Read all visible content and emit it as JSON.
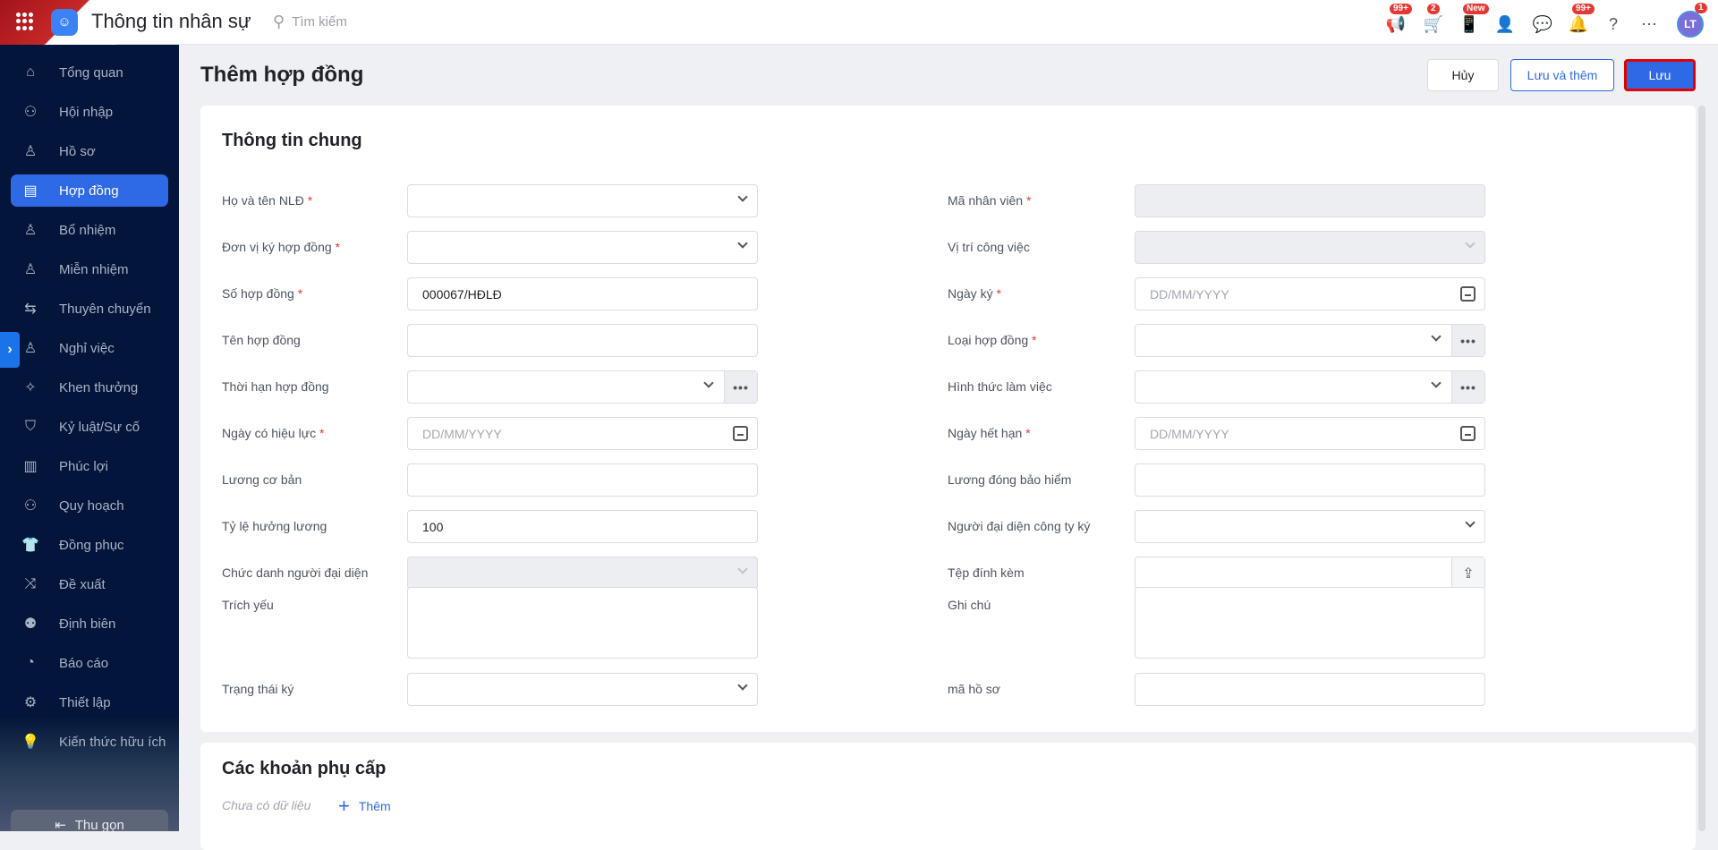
{
  "header": {
    "app_title": "Thông tin nhân sự",
    "search_placeholder": "Tìm kiếm",
    "icons": [
      {
        "name": "megaphone-icon",
        "glyph": "📢",
        "badge": "99+"
      },
      {
        "name": "cart-icon",
        "glyph": "🛒",
        "badge": "2"
      },
      {
        "name": "mobile-icon",
        "glyph": "📱",
        "badge": "New"
      },
      {
        "name": "user-add-icon",
        "glyph": "👤",
        "badge": ""
      },
      {
        "name": "chat-icon",
        "glyph": "💬",
        "badge": ""
      },
      {
        "name": "bell-icon",
        "glyph": "🔔",
        "badge": "99+"
      },
      {
        "name": "help-icon",
        "glyph": "?",
        "badge": ""
      },
      {
        "name": "more-icon",
        "glyph": "⋯",
        "badge": ""
      }
    ],
    "avatar": {
      "initials": "LT",
      "badge": "1"
    }
  },
  "sidebar": {
    "items": [
      {
        "label": "Tổng quan",
        "icon": "home-icon",
        "glyph": "⌂"
      },
      {
        "label": "Hội nhập",
        "icon": "group-icon",
        "glyph": "⚇"
      },
      {
        "label": "Hồ sơ",
        "icon": "user-icon",
        "glyph": "♙"
      },
      {
        "label": "Hợp đồng",
        "icon": "document-icon",
        "glyph": "▤",
        "active": true
      },
      {
        "label": "Bổ nhiệm",
        "icon": "user-plus-icon",
        "glyph": "♙"
      },
      {
        "label": "Miễn nhiệm",
        "icon": "user-minus-icon",
        "glyph": "♙"
      },
      {
        "label": "Thuyên chuyển",
        "icon": "transfer-icon",
        "glyph": "⇆"
      },
      {
        "label": "Nghỉ việc",
        "icon": "user-x-icon",
        "glyph": "♙"
      },
      {
        "label": "Khen thưởng",
        "icon": "reward-icon",
        "glyph": "✧"
      },
      {
        "label": "Kỷ luật/Sự cố",
        "icon": "shield-icon",
        "glyph": "⛉"
      },
      {
        "label": "Phúc lợi",
        "icon": "benefit-icon",
        "glyph": "▥"
      },
      {
        "label": "Quy hoạch",
        "icon": "planning-icon",
        "glyph": "⚇"
      },
      {
        "label": "Đồng phục",
        "icon": "shirt-icon",
        "glyph": "👕"
      },
      {
        "label": "Đề xuất",
        "icon": "proposal-icon",
        "glyph": "⤨"
      },
      {
        "label": "Định biên",
        "icon": "staffing-icon",
        "glyph": "⚉"
      },
      {
        "label": "Báo cáo",
        "icon": "chart-icon",
        "glyph": "◔"
      },
      {
        "label": "Thiết lập",
        "icon": "gear-icon",
        "glyph": "⚙"
      },
      {
        "label": "Kiến thức hữu ích",
        "icon": "lightbulb-icon",
        "glyph": "💡",
        "gold": true
      }
    ],
    "collapse_label": "Thu gọn"
  },
  "page": {
    "title": "Thêm hợp đồng",
    "cancel": "Hủy",
    "save_and_add": "Lưu và thêm",
    "save": "Lưu"
  },
  "general": {
    "title": "Thông tin chung",
    "left": [
      {
        "label": "Họ và tên NLĐ",
        "required": true,
        "type": "select",
        "value": ""
      },
      {
        "label": "Đơn vị ký hợp đồng",
        "required": true,
        "type": "select",
        "value": ""
      },
      {
        "label": "Số hợp đồng",
        "required": true,
        "type": "text",
        "value": "000067/HĐLĐ"
      },
      {
        "label": "Tên hợp đồng",
        "type": "text",
        "value": ""
      },
      {
        "label": "Thời hạn hợp đồng",
        "type": "select-more",
        "value": ""
      },
      {
        "label": "Ngày có hiệu lực",
        "required": true,
        "type": "date",
        "placeholder": "DD/MM/YYYY"
      },
      {
        "label": "Lương cơ bản",
        "type": "text",
        "value": ""
      },
      {
        "label": "Tỷ lệ hưởng lương",
        "type": "text",
        "value": "100"
      },
      {
        "label": "Chức danh người đại diện",
        "type": "select",
        "disabled": true,
        "value": ""
      },
      {
        "label": "Trích yếu",
        "type": "textarea",
        "value": ""
      },
      {
        "label": "Trạng thái ký",
        "type": "select",
        "value": ""
      }
    ],
    "right": [
      {
        "label": "Mã nhân viên",
        "required": true,
        "type": "text",
        "disabled": true,
        "value": ""
      },
      {
        "label": "Vị trí công việc",
        "type": "select",
        "disabled": true,
        "value": ""
      },
      {
        "label": "Ngày ký",
        "required": true,
        "type": "date",
        "placeholder": "DD/MM/YYYY"
      },
      {
        "label": "Loại hợp đồng",
        "required": true,
        "type": "select-more",
        "value": ""
      },
      {
        "label": "Hình thức làm việc",
        "type": "select-more",
        "value": ""
      },
      {
        "label": "Ngày hết hạn",
        "required": true,
        "type": "date",
        "placeholder": "DD/MM/YYYY"
      },
      {
        "label": "Lương đóng bảo hiểm",
        "type": "text",
        "value": ""
      },
      {
        "label": "Người đại diện công ty ký",
        "type": "select",
        "value": ""
      },
      {
        "label": "Tệp đính kèm",
        "type": "upload",
        "value": ""
      },
      {
        "label": "Ghi chú",
        "type": "textarea",
        "value": ""
      },
      {
        "label": "mã hồ sơ",
        "type": "text",
        "value": ""
      }
    ]
  },
  "allowances": {
    "title": "Các khoản phụ cấp",
    "empty": "Chưa có dữ liệu",
    "add": "Thêm"
  },
  "colors": {
    "primary": "#2f6ae6",
    "sidebar": "#03153a",
    "required": "#e53935",
    "highlight_border": "#e30000"
  }
}
